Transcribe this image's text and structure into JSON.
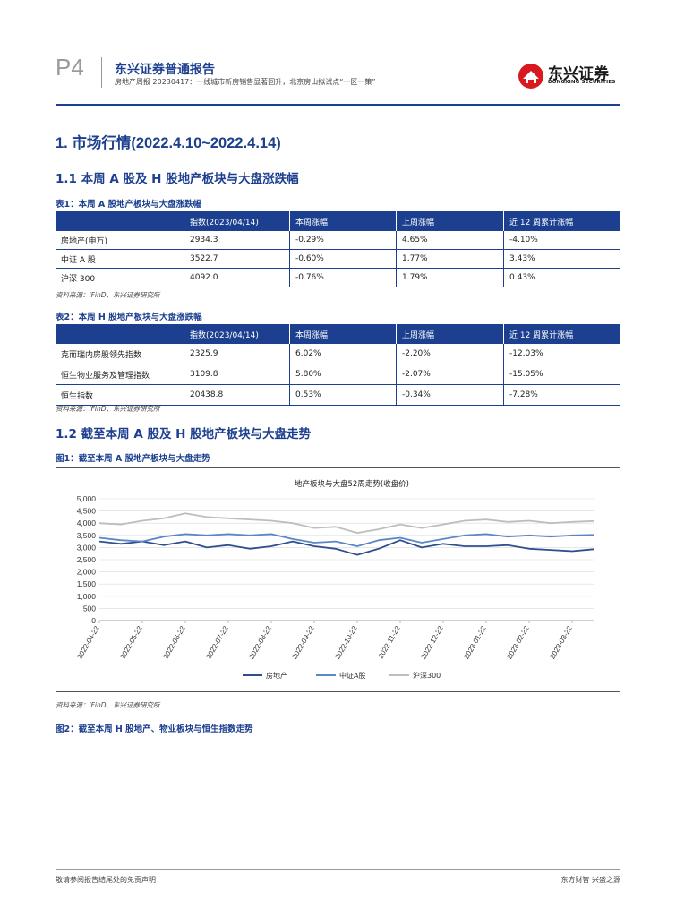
{
  "header": {
    "page": "P4",
    "title": "东兴证券普通报告",
    "subtitle": "房地产周报 20230417：一线城市新房销售显著回升，北京房山拟试点“一区一策”",
    "logo_cn": "东兴证券",
    "logo_en": "DONGXING SECURITIES"
  },
  "section1": {
    "heading": "1. 市场行情(2022.4.10~2022.4.14)"
  },
  "section11": {
    "heading": "1.1 本周 A 股及 H 股地产板块与大盘涨跌幅"
  },
  "table1": {
    "caption": "表1：本周 A 股地产板块与大盘涨跌幅",
    "headers": [
      "",
      "指数(2023/04/14)",
      "本周涨幅",
      "上周涨幅",
      "近 12 周累计涨幅"
    ],
    "rows": [
      [
        "房地产(申万)",
        "2934.3",
        "-0.29%",
        "4.65%",
        "-4.10%"
      ],
      [
        "中证 A 股",
        "3522.7",
        "-0.60%",
        "1.77%",
        "3.43%"
      ],
      [
        "沪深 300",
        "4092.0",
        "-0.76%",
        "1.79%",
        "0.43%"
      ]
    ],
    "source": "资料来源：iFinD、东兴证券研究所"
  },
  "table2": {
    "caption": "表2：本周 H 股地产板块与大盘涨跌幅",
    "headers": [
      "",
      "指数(2023/04/14)",
      "本周涨幅",
      "上周涨幅",
      "近 12 周累计涨幅"
    ],
    "rows": [
      [
        "克而瑞内房股领先指数",
        "2325.9",
        "6.02%",
        "-2.20%",
        "-12.03%"
      ],
      [
        "恒生物业服务及管理指数",
        "3109.8",
        "5.80%",
        "-2.07%",
        "-15.05%"
      ],
      [
        "恒生指数",
        "20438.8",
        "0.53%",
        "-0.34%",
        "-7.28%"
      ]
    ],
    "source": "资料来源：iFinD、东兴证券研究所"
  },
  "section12": {
    "heading": "1.2 截至本周 A 股及 H 股地产板块与大盘走势"
  },
  "figure1": {
    "caption": "图1：截至本周 A 股地产板块与大盘走势",
    "source": "资料来源：iFinD、东兴证券研究所"
  },
  "figure2": {
    "caption": "图2：截至本周 H 股地产、物业板块与恒生指数走势"
  },
  "footer": {
    "left": "敬请参阅报告结尾处的免责声明",
    "right": "东方财智 兴盛之源"
  },
  "chart_data": {
    "type": "line",
    "title": "地产板块与大盘52周走势(收盘价)",
    "x": [
      "2022-04-22",
      "2022-05-06",
      "2022-05-22",
      "2022-06-06",
      "2022-06-22",
      "2022-07-06",
      "2022-07-22",
      "2022-08-06",
      "2022-08-22",
      "2022-09-06",
      "2022-09-22",
      "2022-10-06",
      "2022-10-22",
      "2022-11-06",
      "2022-11-22",
      "2022-12-06",
      "2022-12-22",
      "2023-01-06",
      "2023-01-22",
      "2023-02-06",
      "2023-02-22",
      "2023-03-06",
      "2023-03-22",
      "2023-04-14"
    ],
    "xticks": [
      "2022-04-22",
      "2022-05-22",
      "2022-06-22",
      "2022-07-22",
      "2022-08-22",
      "2022-09-22",
      "2022-10-22",
      "2022-11-22",
      "2022-12-22",
      "2023-01-22",
      "2023-02-22",
      "2023-03-22"
    ],
    "yticks": [
      "0",
      "500",
      "1,000",
      "1,500",
      "2,000",
      "2,500",
      "3,000",
      "3,500",
      "4,000",
      "4,500",
      "5,000"
    ],
    "ylim": [
      0,
      5000
    ],
    "series": [
      {
        "name": "房地产",
        "color": "#2e4e8f",
        "values": [
          3250,
          3150,
          3250,
          3100,
          3250,
          3000,
          3100,
          2950,
          3050,
          3250,
          3050,
          2950,
          2700,
          2950,
          3300,
          3000,
          3150,
          3050,
          3050,
          3100,
          2950,
          2900,
          2850,
          2930
        ]
      },
      {
        "name": "中证A股",
        "color": "#5b86c7",
        "values": [
          3400,
          3300,
          3250,
          3450,
          3550,
          3500,
          3550,
          3500,
          3550,
          3350,
          3200,
          3250,
          3050,
          3300,
          3400,
          3200,
          3350,
          3500,
          3550,
          3450,
          3500,
          3450,
          3500,
          3520
        ]
      },
      {
        "name": "沪深300",
        "color": "#bdbdbd",
        "values": [
          4000,
          3950,
          4100,
          4200,
          4400,
          4250,
          4200,
          4150,
          4100,
          4000,
          3800,
          3850,
          3600,
          3750,
          3950,
          3800,
          3950,
          4100,
          4150,
          4050,
          4100,
          4000,
          4050,
          4090
        ]
      }
    ]
  }
}
